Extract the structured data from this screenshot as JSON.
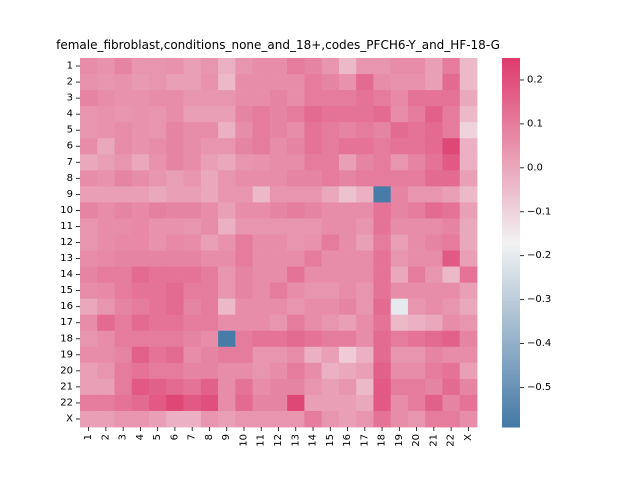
{
  "chart_data": {
    "type": "heatmap",
    "title": "female_fibroblast,conditions_none_and_18+,codes_PFCH6-Y_and_HF-18-G",
    "xlabel": "",
    "ylabel": "",
    "x_labels": [
      "1",
      "2",
      "3",
      "4",
      "5",
      "6",
      "7",
      "8",
      "9",
      "10",
      "11",
      "12",
      "13",
      "14",
      "15",
      "16",
      "17",
      "18",
      "19",
      "20",
      "21",
      "22",
      "X"
    ],
    "y_labels": [
      "1",
      "2",
      "3",
      "4",
      "5",
      "6",
      "7",
      "8",
      "9",
      "10",
      "11",
      "12",
      "13",
      "14",
      "15",
      "16",
      "17",
      "18",
      "19",
      "20",
      "21",
      "22",
      "X"
    ],
    "colorbar": {
      "vmin": -0.59,
      "vmax": 0.25,
      "ticks": [
        0.2,
        0.1,
        0.0,
        -0.1,
        -0.2,
        -0.3,
        -0.4,
        -0.5
      ],
      "tick_labels": [
        "0.2",
        "0.1",
        "0.0",
        "−0.1",
        "−0.2",
        "−0.3",
        "−0.4",
        "−0.5"
      ],
      "colormap": "diverging blue-white-pink",
      "low_color": "#4479a6",
      "mid_color": "#f2f2f2",
      "high_color": "#de3a6e",
      "center": -0.17
    },
    "values": [
      [
        0.06,
        0.05,
        0.08,
        0.04,
        0.04,
        0.05,
        0.02,
        0.04,
        -0.02,
        0.04,
        0.06,
        0.06,
        0.1,
        0.08,
        0.04,
        -0.04,
        0.04,
        0.04,
        0.06,
        0.06,
        0.02,
        0.1,
        -0.04
      ],
      [
        0.05,
        0.04,
        0.05,
        0.03,
        0.04,
        0.02,
        0.02,
        0.05,
        -0.04,
        0.06,
        0.06,
        0.06,
        0.06,
        0.1,
        0.08,
        0.05,
        0.14,
        0.06,
        0.05,
        0.05,
        0.02,
        0.14,
        -0.04
      ],
      [
        0.08,
        0.06,
        0.05,
        0.05,
        0.06,
        0.06,
        0.04,
        0.04,
        0.04,
        0.06,
        0.06,
        0.08,
        0.06,
        0.1,
        0.1,
        0.1,
        0.12,
        0.1,
        0.07,
        0.12,
        0.12,
        0.12,
        0.0
      ],
      [
        0.04,
        0.05,
        0.04,
        0.05,
        0.04,
        0.06,
        0.02,
        0.02,
        0.02,
        0.08,
        0.1,
        0.08,
        0.1,
        0.14,
        0.12,
        0.12,
        0.12,
        0.14,
        0.06,
        0.1,
        0.16,
        0.1,
        -0.04
      ],
      [
        0.04,
        0.05,
        0.06,
        0.05,
        0.04,
        0.08,
        0.06,
        0.06,
        -0.02,
        0.06,
        0.1,
        0.08,
        0.06,
        0.12,
        0.1,
        0.08,
        0.1,
        0.08,
        0.14,
        0.12,
        0.14,
        0.1,
        -0.1
      ],
      [
        0.06,
        0.0,
        0.06,
        0.05,
        0.06,
        0.08,
        0.06,
        0.04,
        0.04,
        0.08,
        0.1,
        0.06,
        0.08,
        0.12,
        0.1,
        0.12,
        0.12,
        0.1,
        0.12,
        0.12,
        0.14,
        0.22,
        -0.02
      ],
      [
        0.0,
        0.02,
        0.04,
        0.0,
        0.05,
        0.08,
        0.06,
        0.02,
        0.0,
        0.04,
        0.05,
        0.06,
        0.06,
        0.1,
        0.1,
        0.02,
        0.08,
        0.1,
        0.04,
        0.08,
        0.12,
        0.18,
        -0.02
      ],
      [
        0.06,
        0.05,
        0.08,
        0.06,
        0.04,
        0.02,
        0.04,
        0.0,
        0.04,
        0.06,
        0.06,
        0.06,
        0.08,
        0.08,
        0.1,
        0.08,
        0.1,
        0.1,
        0.1,
        0.1,
        0.14,
        0.14,
        0.02
      ],
      [
        0.02,
        0.02,
        0.02,
        0.02,
        0.0,
        0.02,
        0.02,
        0.0,
        0.04,
        0.04,
        -0.04,
        0.04,
        0.04,
        0.04,
        0.0,
        -0.06,
        -0.02,
        -0.58,
        0.08,
        0.04,
        0.04,
        0.02,
        -0.04
      ],
      [
        0.08,
        0.06,
        0.08,
        0.07,
        0.09,
        0.08,
        0.08,
        0.06,
        0.02,
        0.06,
        0.06,
        0.08,
        0.1,
        0.08,
        0.06,
        0.06,
        0.06,
        0.12,
        0.08,
        0.1,
        0.14,
        0.12,
        0.02
      ],
      [
        0.04,
        0.06,
        0.06,
        0.07,
        0.05,
        0.05,
        0.04,
        0.06,
        -0.02,
        0.04,
        0.04,
        0.04,
        0.04,
        0.04,
        0.06,
        0.06,
        0.04,
        0.12,
        0.06,
        0.06,
        0.06,
        0.08,
        0.0
      ],
      [
        0.04,
        0.06,
        0.07,
        0.07,
        0.05,
        0.07,
        0.06,
        0.02,
        0.05,
        0.1,
        0.06,
        0.06,
        0.04,
        0.05,
        0.1,
        0.06,
        0.02,
        0.1,
        0.02,
        0.06,
        0.08,
        0.1,
        0.0
      ],
      [
        0.06,
        0.07,
        0.08,
        0.08,
        0.08,
        0.08,
        0.08,
        0.06,
        0.06,
        0.1,
        0.06,
        0.06,
        0.06,
        0.1,
        0.06,
        0.06,
        0.06,
        0.12,
        0.04,
        0.06,
        0.06,
        0.18,
        0.02
      ],
      [
        0.08,
        0.1,
        0.1,
        0.14,
        0.12,
        0.12,
        0.12,
        0.1,
        0.04,
        0.08,
        0.06,
        0.06,
        0.12,
        0.06,
        0.06,
        0.06,
        0.06,
        0.12,
        0.0,
        0.1,
        0.04,
        -0.04,
        0.12
      ],
      [
        0.06,
        0.07,
        0.1,
        0.12,
        0.12,
        0.14,
        0.1,
        0.1,
        0.04,
        0.08,
        0.06,
        0.1,
        0.06,
        0.04,
        0.04,
        0.06,
        0.04,
        0.12,
        0.06,
        0.06,
        0.06,
        0.06,
        0.02
      ],
      [
        0.0,
        0.04,
        0.08,
        0.1,
        0.12,
        0.14,
        0.08,
        0.1,
        -0.04,
        0.06,
        0.06,
        0.06,
        0.04,
        0.06,
        0.06,
        0.08,
        0.04,
        0.14,
        -0.2,
        0.04,
        0.06,
        0.04,
        0.0
      ],
      [
        0.06,
        0.14,
        0.1,
        0.14,
        0.12,
        0.12,
        0.1,
        0.1,
        0.06,
        0.06,
        0.06,
        0.04,
        0.1,
        0.06,
        0.04,
        0.02,
        0.06,
        0.12,
        -0.04,
        -0.02,
        0.0,
        0.06,
        0.04
      ],
      [
        0.04,
        0.06,
        0.1,
        0.1,
        0.1,
        0.1,
        0.08,
        0.06,
        -0.58,
        0.1,
        0.12,
        0.12,
        0.14,
        0.12,
        0.1,
        0.1,
        0.06,
        0.14,
        0.1,
        0.12,
        0.14,
        0.16,
        0.08
      ],
      [
        0.06,
        0.06,
        0.08,
        0.16,
        0.12,
        0.14,
        0.06,
        0.08,
        0.1,
        0.1,
        0.04,
        0.04,
        0.06,
        -0.02,
        0.02,
        -0.08,
        -0.02,
        0.14,
        0.04,
        0.04,
        0.08,
        0.06,
        0.06
      ],
      [
        0.02,
        0.04,
        0.1,
        0.12,
        0.1,
        0.1,
        0.08,
        0.08,
        0.06,
        0.06,
        0.04,
        0.06,
        0.1,
        0.06,
        -0.02,
        0.0,
        0.02,
        0.16,
        0.06,
        0.06,
        0.1,
        0.12,
        0.02
      ],
      [
        0.02,
        0.02,
        0.1,
        0.18,
        0.16,
        0.14,
        0.12,
        0.16,
        0.06,
        0.12,
        0.06,
        0.08,
        0.08,
        0.04,
        0.02,
        0.04,
        -0.04,
        0.18,
        0.1,
        0.1,
        0.08,
        0.14,
        0.08
      ],
      [
        0.1,
        0.1,
        0.12,
        0.14,
        0.18,
        0.22,
        0.18,
        0.2,
        0.06,
        0.14,
        0.08,
        0.08,
        0.22,
        0.02,
        0.02,
        0.02,
        0.0,
        0.18,
        0.06,
        0.1,
        0.16,
        0.08,
        0.12
      ],
      [
        0.02,
        0.02,
        0.04,
        0.04,
        0.02,
        -0.02,
        -0.02,
        0.04,
        0.02,
        0.04,
        0.04,
        0.04,
        0.04,
        0.1,
        0.04,
        0.02,
        0.04,
        0.12,
        0.06,
        0.04,
        0.1,
        0.1,
        0.06
      ]
    ]
  }
}
